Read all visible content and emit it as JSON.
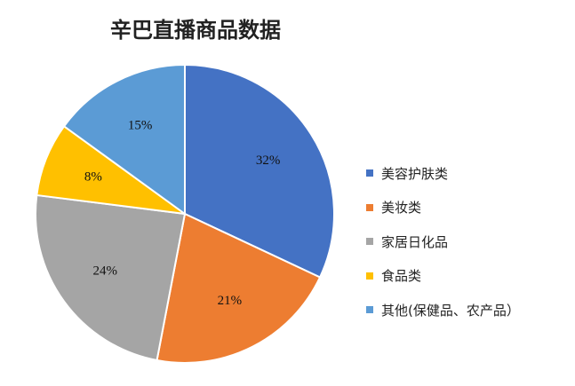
{
  "chart_data": {
    "type": "pie",
    "title": "辛巴直播商品数据",
    "categories": [
      "美容护肤类",
      "美妆类",
      "家居日化品",
      "食品类",
      "其他(保健品、农产品）"
    ],
    "values": [
      32,
      21,
      24,
      8,
      15
    ],
    "labels": [
      "32%",
      "21%",
      "24%",
      "8%",
      "15%"
    ],
    "colors": [
      "#4472C4",
      "#ED7D31",
      "#A5A5A5",
      "#FFC000",
      "#5B9BD5"
    ],
    "legend_position": "right",
    "start_angle": "top",
    "direction": "clockwise"
  }
}
